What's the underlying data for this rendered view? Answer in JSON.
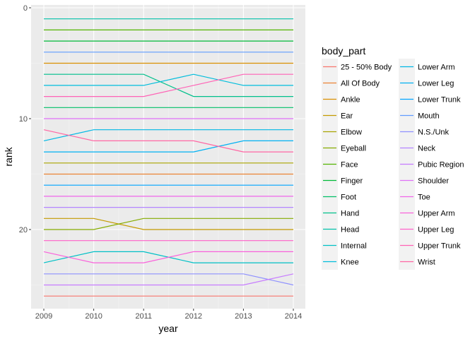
{
  "chart_data": {
    "type": "line",
    "xlabel": "year",
    "ylabel": "rank",
    "x": [
      2009,
      2010,
      2011,
      2012,
      2013,
      2014
    ],
    "x_ticks": [
      "2009",
      "2010",
      "2011",
      "2012",
      "2013",
      "2014"
    ],
    "ylim": [
      27,
      0
    ],
    "y_reversed": true,
    "y_ticks": [
      "0",
      "10",
      "20"
    ],
    "grid": true,
    "legend_title": "body_part",
    "legend_position": "right",
    "series": [
      {
        "name": "25 - 50% Body",
        "color": "#F8766D",
        "values": [
          26,
          26,
          26,
          26,
          26,
          26
        ]
      },
      {
        "name": "All Of Body",
        "color": "#EB8335",
        "values": [
          15,
          15,
          15,
          15,
          15,
          15
        ]
      },
      {
        "name": "Ankle",
        "color": "#DA8F00",
        "values": [
          5,
          5,
          5,
          5,
          5,
          5
        ]
      },
      {
        "name": "Ear",
        "color": "#C49A00",
        "values": [
          19,
          19,
          20,
          20,
          20,
          20
        ]
      },
      {
        "name": "Elbow",
        "color": "#A9A400",
        "values": [
          14,
          14,
          14,
          14,
          14,
          14
        ]
      },
      {
        "name": "Eyeball",
        "color": "#86AC00",
        "values": [
          20,
          20,
          19,
          19,
          19,
          19
        ]
      },
      {
        "name": "Face",
        "color": "#53B400",
        "values": [
          2,
          2,
          2,
          2,
          2,
          2
        ]
      },
      {
        "name": "Finger",
        "color": "#00BA38",
        "values": [
          3,
          3,
          3,
          3,
          3,
          3
        ]
      },
      {
        "name": "Foot",
        "color": "#00BE67",
        "values": [
          9,
          9,
          9,
          9,
          9,
          9
        ]
      },
      {
        "name": "Hand",
        "color": "#00C08B",
        "values": [
          6,
          6,
          6,
          8,
          8,
          8
        ]
      },
      {
        "name": "Head",
        "color": "#00C1AA",
        "values": [
          1,
          1,
          1,
          1,
          1,
          1
        ]
      },
      {
        "name": "Internal",
        "color": "#00C0C6",
        "values": [
          23,
          22,
          22,
          23,
          23,
          23
        ]
      },
      {
        "name": "Knee",
        "color": "#00BDDC",
        "values": [
          7,
          7,
          7,
          6,
          7,
          7
        ]
      },
      {
        "name": "Lower Arm",
        "color": "#00B8E5",
        "values": [
          12,
          11,
          11,
          11,
          11,
          11
        ]
      },
      {
        "name": "Lower Leg",
        "color": "#00B1F3",
        "values": [
          13,
          13,
          13,
          13,
          12,
          12
        ]
      },
      {
        "name": "Lower Trunk",
        "color": "#00A5FF",
        "values": [
          16,
          16,
          16,
          16,
          16,
          16
        ]
      },
      {
        "name": "Mouth",
        "color": "#619CFF",
        "values": [
          4,
          4,
          4,
          4,
          4,
          4
        ]
      },
      {
        "name": "N.S./Unk",
        "color": "#8F91FF",
        "values": [
          24,
          24,
          24,
          24,
          24,
          25
        ]
      },
      {
        "name": "Neck",
        "color": "#B385FF",
        "values": [
          18,
          18,
          18,
          18,
          18,
          18
        ]
      },
      {
        "name": "Pubic Region",
        "color": "#C77CFF",
        "values": [
          25,
          25,
          25,
          25,
          25,
          24
        ]
      },
      {
        "name": "Shoulder",
        "color": "#DF70F8",
        "values": [
          10,
          10,
          10,
          10,
          10,
          10
        ]
      },
      {
        "name": "Toe",
        "color": "#F066EA",
        "values": [
          17,
          17,
          17,
          17,
          17,
          17
        ]
      },
      {
        "name": "Upper Arm",
        "color": "#FA62DB",
        "values": [
          22,
          23,
          23,
          22,
          22,
          22
        ]
      },
      {
        "name": "Upper Leg",
        "color": "#FF61C9",
        "values": [
          21,
          21,
          21,
          21,
          21,
          21
        ]
      },
      {
        "name": "Upper Trunk",
        "color": "#FF63B6",
        "values": [
          8,
          8,
          8,
          7,
          6,
          6
        ]
      },
      {
        "name": "Wrist",
        "color": "#FF67A4",
        "values": [
          11,
          12,
          12,
          12,
          13,
          13
        ]
      }
    ]
  }
}
